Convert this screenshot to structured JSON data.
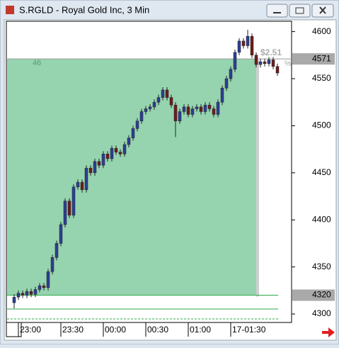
{
  "window": {
    "title": "S.RGLD - Royal Gold Inc, 3 Min"
  },
  "chart_data": {
    "type": "candlestick",
    "categories": [
      null,
      "23:00",
      null,
      null,
      null,
      null,
      null,
      null,
      null,
      null,
      null,
      "23:30",
      null,
      null,
      null,
      null,
      null,
      null,
      null,
      null,
      null,
      "00:00",
      null,
      null,
      null,
      null,
      null,
      null,
      null,
      null,
      null,
      "00:30",
      null,
      null,
      null,
      null,
      null,
      null,
      null,
      null,
      null,
      "01:00",
      null,
      null,
      null,
      null,
      null,
      null,
      null,
      null,
      null,
      "17-01:30",
      null,
      null,
      null,
      null,
      null,
      null,
      null,
      null,
      null,
      null,
      null
    ],
    "open": [
      4312,
      4318,
      4322,
      4320,
      4324,
      4321,
      4326,
      4330,
      4328,
      4345,
      4360,
      4375,
      4395,
      4420,
      4405,
      4435,
      4440,
      4432,
      4455,
      4450,
      4462,
      4458,
      4470,
      4465,
      4476,
      4472,
      4470,
      4480,
      4487,
      4497,
      4505,
      4515,
      4518,
      4520,
      4525,
      4530,
      4538,
      4530,
      4522,
      4505,
      4515,
      4520,
      4512,
      4518,
      4520,
      4515,
      4522,
      4518,
      4512,
      4525,
      4540,
      4550,
      4560,
      4578,
      4590,
      4585,
      4595,
      4575,
      4565,
      4568,
      4566,
      4570,
      4563
    ],
    "high": [
      4321,
      4325,
      4325,
      4327,
      4327,
      4329,
      4333,
      4333,
      4348,
      4363,
      4378,
      4398,
      4423,
      4423,
      4438,
      4443,
      4443,
      4458,
      4458,
      4465,
      4465,
      4473,
      4473,
      4479,
      4479,
      4475,
      4483,
      4490,
      4500,
      4508,
      4518,
      4521,
      4523,
      4528,
      4533,
      4541,
      4541,
      4533,
      4525,
      4518,
      4523,
      4523,
      4521,
      4523,
      4523,
      4525,
      4525,
      4521,
      4528,
      4543,
      4553,
      4563,
      4581,
      4593,
      4593,
      4602,
      4598,
      4578,
      4571,
      4571,
      4573,
      4573,
      4566
    ],
    "low": [
      4306,
      4315,
      4317,
      4317,
      4318,
      4318,
      4323,
      4325,
      4325,
      4342,
      4357,
      4372,
      4392,
      4402,
      4402,
      4432,
      4429,
      4429,
      4447,
      4447,
      4455,
      4455,
      4462,
      4462,
      4469,
      4467,
      4467,
      4477,
      4484,
      4494,
      4502,
      4512,
      4515,
      4517,
      4522,
      4527,
      4527,
      4519,
      4488,
      4502,
      4512,
      4509,
      4509,
      4515,
      4512,
      4512,
      4515,
      4509,
      4509,
      4522,
      4537,
      4547,
      4557,
      4575,
      4582,
      4582,
      4572,
      4562,
      4562,
      4563,
      4563,
      4560,
      4553
    ],
    "close": [
      4318,
      4322,
      4320,
      4324,
      4321,
      4326,
      4330,
      4328,
      4345,
      4360,
      4375,
      4395,
      4420,
      4405,
      4435,
      4440,
      4432,
      4455,
      4450,
      4462,
      4458,
      4470,
      4465,
      4476,
      4472,
      4470,
      4480,
      4487,
      4497,
      4505,
      4515,
      4518,
      4520,
      4525,
      4530,
      4538,
      4530,
      4522,
      4505,
      4515,
      4520,
      4512,
      4518,
      4520,
      4515,
      4522,
      4518,
      4512,
      4525,
      4540,
      4550,
      4560,
      4578,
      4590,
      4585,
      4595,
      4575,
      4565,
      4568,
      4566,
      4570,
      4563,
      4556
    ],
    "up_color": "#2c3f95",
    "down_color": "#6e1c1c",
    "ylim": [
      4291,
      4611
    ],
    "yticks": [
      4300,
      4350,
      4400,
      4450,
      4500,
      4550,
      4600
    ],
    "price_labels": [
      4571,
      4320
    ],
    "annotations": [
      "46",
      "$2.51",
      "%"
    ]
  }
}
